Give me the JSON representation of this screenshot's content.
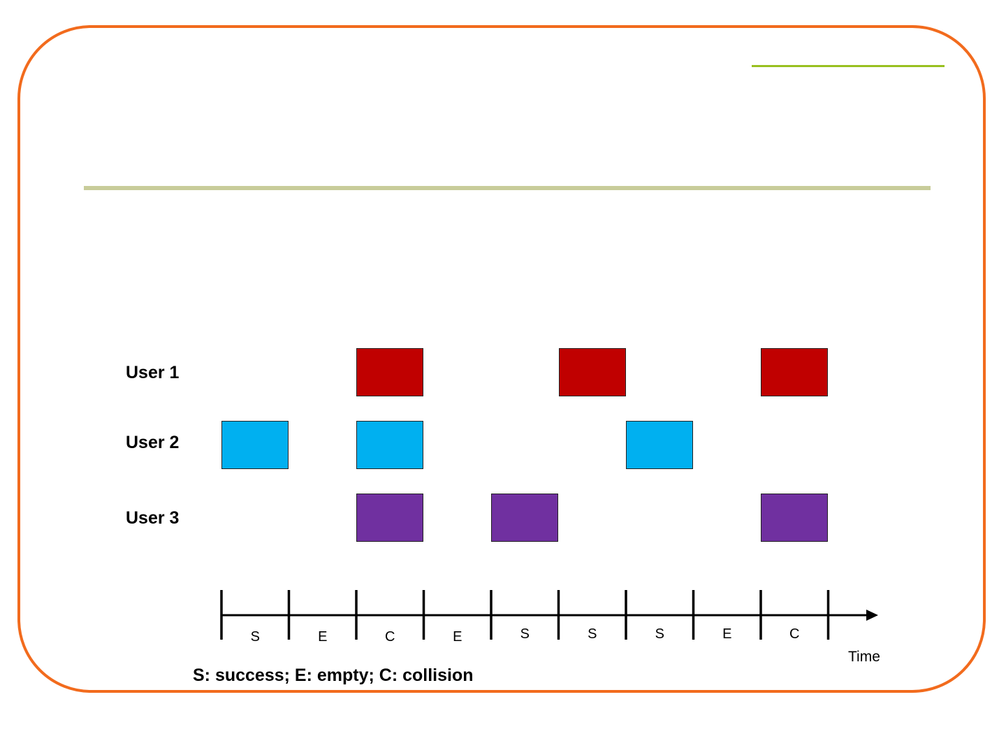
{
  "users": [
    {
      "label": "User 1",
      "color": "#c00000",
      "slots": [
        2,
        5,
        8
      ]
    },
    {
      "label": "User 2",
      "color": "#00b0f0",
      "slots": [
        0,
        2,
        6
      ]
    },
    {
      "label": "User 3",
      "color": "#7030a0",
      "slots": [
        2,
        4,
        8
      ]
    }
  ],
  "timeline": {
    "slot_outcomes": [
      "S",
      "E",
      "C",
      "E",
      "S",
      "S",
      "S",
      "E",
      "C"
    ],
    "axis_label": "Time"
  },
  "legend": "S: success; E: empty; C: collision",
  "colors": {
    "frame_border": "#f26b1d",
    "accent_line": "#99c020",
    "title_rule": "#c8cc9a"
  }
}
